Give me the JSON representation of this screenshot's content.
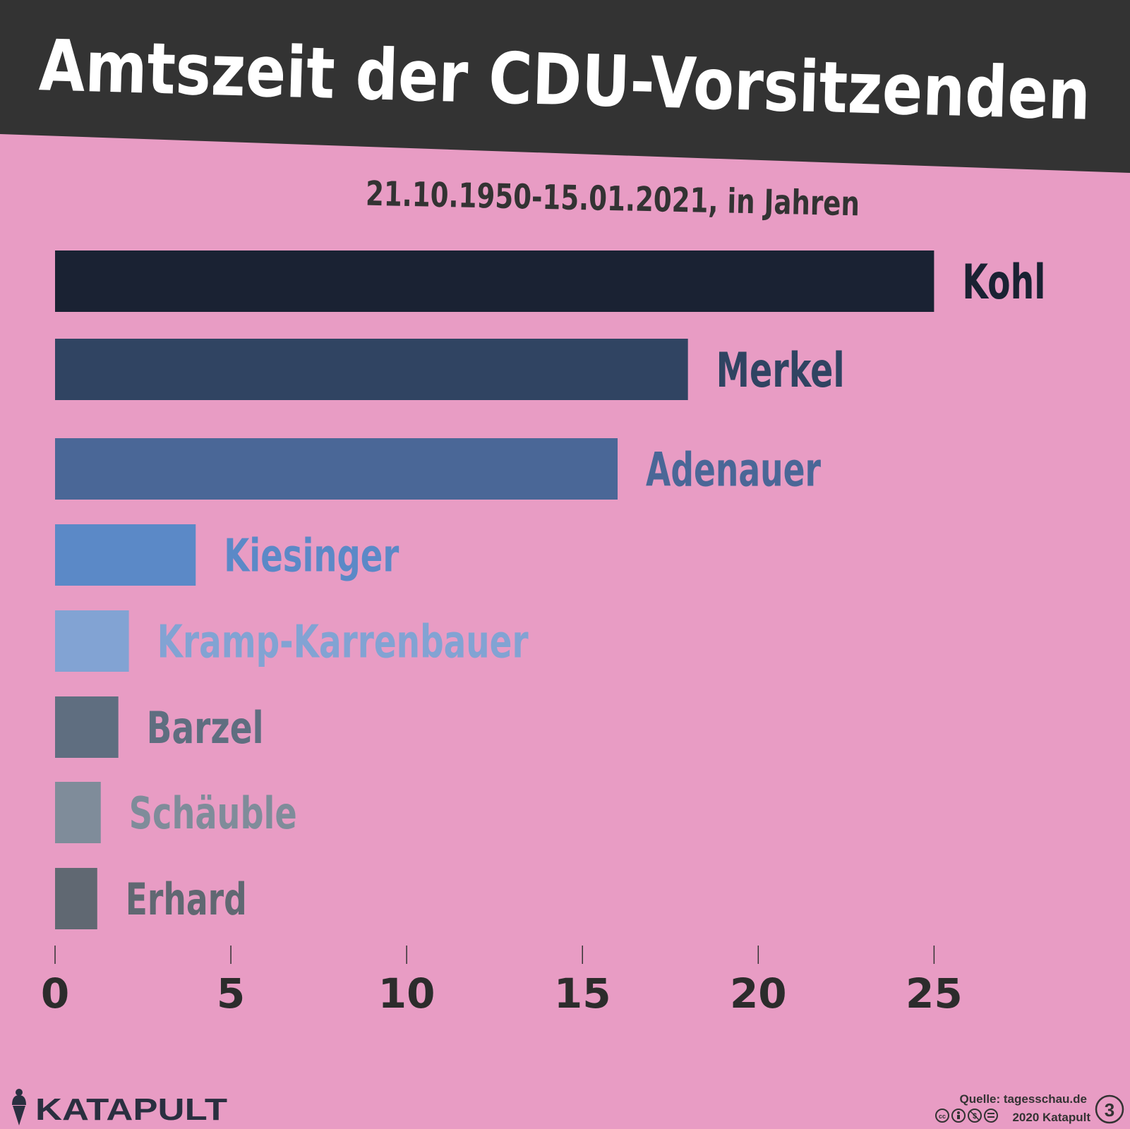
{
  "header": {
    "title": "Amtszeit der CDU-Vorsitzenden",
    "subtitle": "21.10.1950-15.01.2021, in Jahren"
  },
  "chart_data": {
    "type": "bar",
    "orientation": "horizontal",
    "categories": [
      "Kohl",
      "Merkel",
      "Adenauer",
      "Kiesinger",
      "Kramp-Karrenbauer",
      "Barzel",
      "Schäuble",
      "Erhard"
    ],
    "values": [
      25.0,
      18.0,
      16.0,
      4.0,
      2.1,
      1.8,
      1.3,
      1.2
    ],
    "colors": [
      "#1a2233",
      "#304462",
      "#4a6797",
      "#5b89c7",
      "#82a3d3",
      "#5f6e80",
      "#7f8c9a",
      "#606872"
    ],
    "xlim": [
      0,
      28
    ],
    "xticks": [
      0,
      5,
      10,
      15,
      20,
      25
    ],
    "grid": false,
    "title": "Amtszeit der CDU-Vorsitzenden",
    "subtitle": "21.10.1950-15.01.2021, in Jahren",
    "xlabel": "",
    "ylabel": ""
  },
  "colors": {
    "background": "#e89cc4",
    "header_band": "#333333",
    "header_text": "#ffffff",
    "subtitle_text": "#333333",
    "axis_text": "#2c2c2c",
    "footer_text": "#333333"
  },
  "footer": {
    "logo_icon": "ice-cream-icon",
    "logo_text": "KATAPULT",
    "source": "Quelle: tagesschau.de",
    "copyright": "2020 Katapult",
    "license_icons": [
      "cc-icon",
      "by-icon",
      "nc-icon",
      "nd-icon"
    ],
    "badge": "3"
  }
}
